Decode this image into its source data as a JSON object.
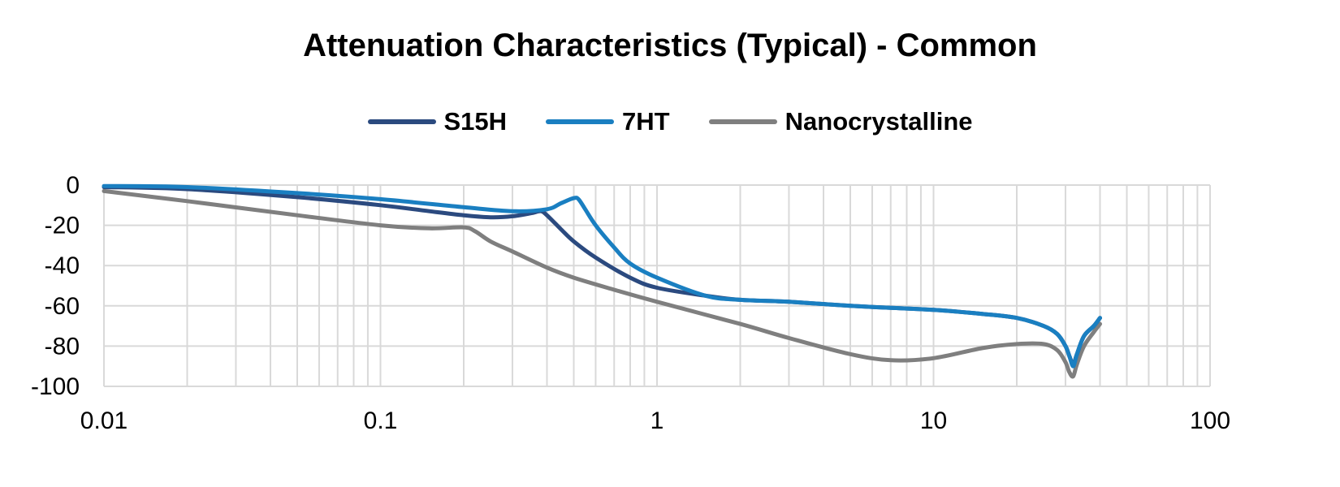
{
  "chart_data": {
    "type": "line",
    "title": "Attenuation Characteristics (Typical) - Common",
    "xlabel": "",
    "ylabel": "",
    "x_scale": "log",
    "xlim": [
      0.01,
      100
    ],
    "ylim": [
      -100,
      0
    ],
    "x_ticks": [
      0.01,
      0.1,
      1,
      10,
      100
    ],
    "x_tick_labels": [
      "0.01",
      "0.1",
      "1",
      "10",
      "100"
    ],
    "y_ticks": [
      0,
      -20,
      -40,
      -60,
      -80,
      -100
    ],
    "y_tick_labels": [
      "0",
      "-20",
      "-40",
      "-60",
      "-80",
      "-100"
    ],
    "grid": true,
    "legend_position": "top-center",
    "series": [
      {
        "name": "S15H",
        "color": "#2b4a7f",
        "x": [
          0.01,
          0.02,
          0.05,
          0.1,
          0.15,
          0.2,
          0.25,
          0.3,
          0.35,
          0.38,
          0.4,
          0.45,
          0.5,
          0.6,
          0.8,
          1,
          1.5,
          2,
          3,
          5,
          7,
          10,
          15,
          20,
          25,
          28,
          30,
          31,
          32,
          33,
          35,
          38,
          40
        ],
        "y": [
          -1,
          -2,
          -6,
          -10,
          -13,
          -15,
          -16,
          -15.5,
          -14,
          -13,
          -15,
          -22,
          -28,
          -36,
          -46,
          -51,
          -55,
          -57,
          -58,
          -60,
          -61,
          -62,
          -64,
          -66,
          -70,
          -74,
          -80,
          -85,
          -89,
          -84,
          -75,
          -70,
          -66
        ]
      },
      {
        "name": "7HT",
        "color": "#1a7fc1",
        "x": [
          0.01,
          0.02,
          0.05,
          0.1,
          0.2,
          0.3,
          0.4,
          0.45,
          0.5,
          0.52,
          0.55,
          0.6,
          0.7,
          0.8,
          1,
          1.5,
          2,
          3,
          5,
          7,
          10,
          15,
          20,
          25,
          28,
          30,
          31,
          32,
          33,
          35,
          38,
          40
        ],
        "y": [
          -0.5,
          -1,
          -4,
          -7,
          -11,
          -13,
          -12,
          -9,
          -6.5,
          -7,
          -12,
          -20,
          -31,
          -39,
          -46,
          -55,
          -57,
          -58,
          -60,
          -61,
          -62,
          -64,
          -66,
          -70,
          -74,
          -80,
          -85,
          -90,
          -84,
          -75,
          -70,
          -66
        ]
      },
      {
        "name": "Nanocrystalline",
        "color": "#7f7f7f",
        "x": [
          0.01,
          0.02,
          0.05,
          0.1,
          0.15,
          0.2,
          0.22,
          0.25,
          0.3,
          0.4,
          0.5,
          0.7,
          1,
          2,
          3,
          5,
          7,
          10,
          15,
          20,
          25,
          28,
          30,
          31,
          32,
          33,
          35,
          38,
          40
        ],
        "y": [
          -3,
          -8,
          -15,
          -20,
          -21.5,
          -21,
          -23,
          -28,
          -33,
          -41,
          -46,
          -52,
          -58,
          -69,
          -76,
          -84,
          -87,
          -86,
          -81,
          -79,
          -79,
          -82,
          -88,
          -93,
          -95,
          -89,
          -80,
          -73,
          -69
        ]
      }
    ]
  }
}
